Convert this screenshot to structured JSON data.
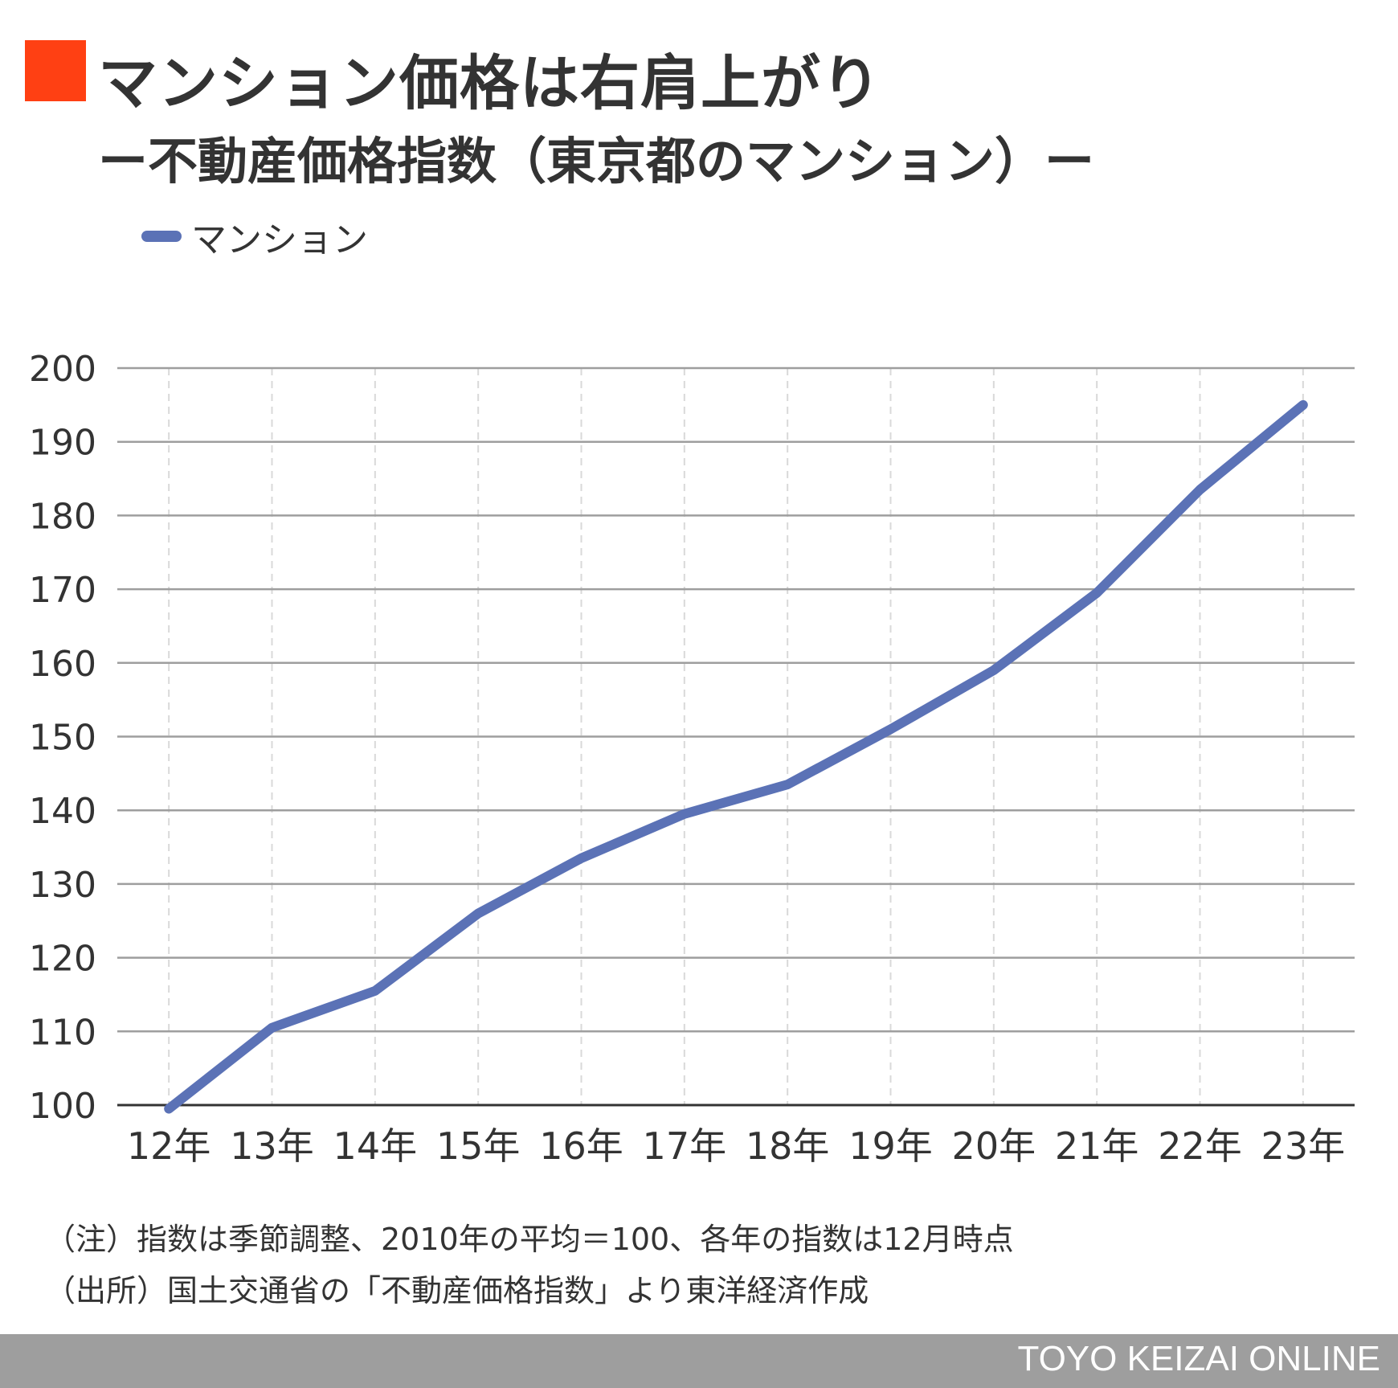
{
  "header": {
    "title": "マンション価格は右肩上がり",
    "subtitle": "ー不動産価格指数（東京都のマンション）ー",
    "accent_color": "#ff4013"
  },
  "legend": {
    "label": "マンション",
    "color": "#5b72b6",
    "placement": "top-left"
  },
  "chart_data": {
    "type": "line",
    "title": "マンション価格は右肩上がり",
    "subtitle": "ー不動産価格指数（東京都のマンション）ー",
    "xlabel": "",
    "ylabel": "",
    "categories": [
      "12年",
      "13年",
      "14年",
      "15年",
      "16年",
      "17年",
      "18年",
      "19年",
      "20年",
      "21年",
      "22年",
      "23年"
    ],
    "series": [
      {
        "name": "マンション",
        "color": "#5b72b6",
        "values": [
          99.5,
          110.5,
          115.5,
          126,
          133.5,
          139.5,
          143.5,
          151,
          159,
          169.5,
          183.5,
          195
        ]
      }
    ],
    "ylim": [
      100,
      200
    ],
    "yticks": [
      "100",
      "110",
      "120",
      "130",
      "140",
      "150",
      "160",
      "170",
      "180",
      "190",
      "200"
    ],
    "grid": {
      "horizontal": true,
      "vertical": "dashed"
    }
  },
  "notes": [
    "（注）指数は季節調整、2010年の平均＝100、各年の指数は12月時点",
    "（出所）国土交通省の「不動産価格指数」より東洋経済作成"
  ],
  "footer": {
    "brand": "TOYO KEIZAI ONLINE"
  }
}
